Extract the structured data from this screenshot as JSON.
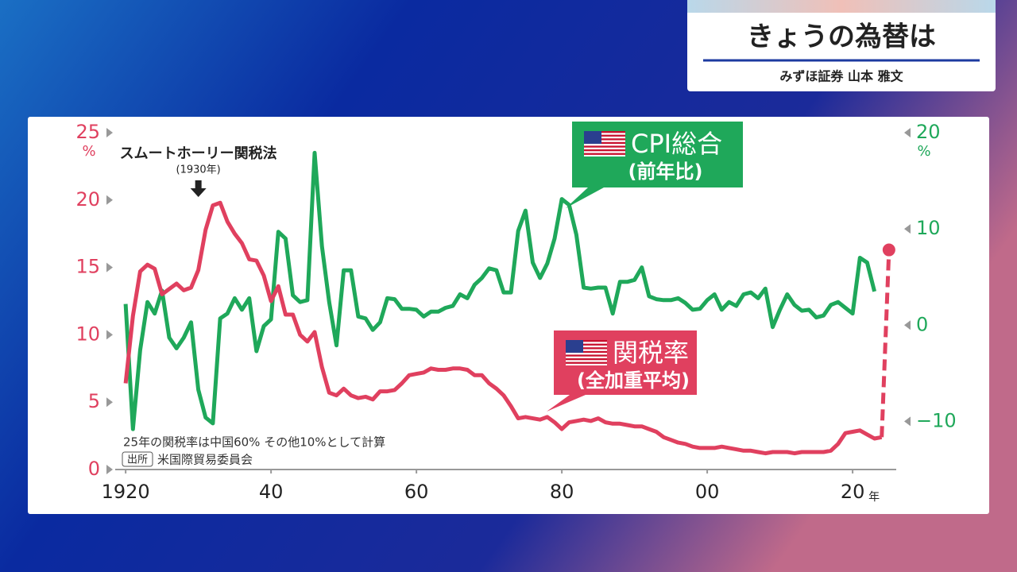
{
  "header": {
    "program": "きょうの為替は",
    "presenter": "みずほ証券 山本 雅文"
  },
  "chart_data": {
    "type": "line",
    "x": [
      1920,
      1921,
      1922,
      1923,
      1924,
      1925,
      1926,
      1927,
      1928,
      1929,
      1930,
      1931,
      1932,
      1933,
      1934,
      1935,
      1936,
      1937,
      1938,
      1939,
      1940,
      1941,
      1942,
      1943,
      1944,
      1945,
      1946,
      1947,
      1948,
      1949,
      1950,
      1951,
      1952,
      1953,
      1954,
      1955,
      1956,
      1957,
      1958,
      1959,
      1960,
      1961,
      1962,
      1963,
      1964,
      1965,
      1966,
      1967,
      1968,
      1969,
      1970,
      1971,
      1972,
      1973,
      1974,
      1975,
      1976,
      1977,
      1978,
      1979,
      1980,
      1981,
      1982,
      1983,
      1984,
      1985,
      1986,
      1987,
      1988,
      1989,
      1990,
      1991,
      1992,
      1993,
      1994,
      1995,
      1996,
      1997,
      1998,
      1999,
      2000,
      2001,
      2002,
      2003,
      2004,
      2005,
      2006,
      2007,
      2008,
      2009,
      2010,
      2011,
      2012,
      2013,
      2014,
      2015,
      2016,
      2017,
      2018,
      2019,
      2020,
      2021,
      2022,
      2023,
      2024,
      2025
    ],
    "series": [
      {
        "name": "関税率",
        "sublabel": "(全加重平均)",
        "color": "#e0405f",
        "axis": "y",
        "dash_last_segment": true,
        "end_marker": true,
        "values": [
          6.4,
          11.4,
          14.7,
          15.2,
          14.9,
          13.0,
          13.4,
          13.8,
          13.3,
          13.5,
          14.8,
          17.8,
          19.6,
          19.8,
          18.4,
          17.5,
          16.8,
          15.6,
          15.5,
          14.4,
          12.5,
          13.6,
          11.5,
          11.5,
          10.0,
          9.5,
          10.2,
          7.6,
          5.7,
          5.5,
          6.0,
          5.5,
          5.3,
          5.4,
          5.2,
          5.8,
          5.8,
          5.9,
          6.4,
          7.0,
          7.1,
          7.2,
          7.5,
          7.4,
          7.4,
          7.5,
          7.5,
          7.4,
          7.0,
          7.0,
          6.4,
          6.0,
          5.5,
          4.7,
          3.8,
          3.9,
          3.8,
          3.7,
          3.9,
          3.5,
          3.0,
          3.5,
          3.6,
          3.7,
          3.6,
          3.8,
          3.5,
          3.4,
          3.4,
          3.3,
          3.2,
          3.2,
          3.0,
          2.8,
          2.4,
          2.2,
          2.0,
          1.9,
          1.7,
          1.6,
          1.6,
          1.6,
          1.7,
          1.6,
          1.5,
          1.4,
          1.4,
          1.3,
          1.2,
          1.3,
          1.3,
          1.3,
          1.2,
          1.3,
          1.3,
          1.3,
          1.3,
          1.4,
          1.9,
          2.7,
          2.8,
          2.9,
          2.6,
          2.3,
          2.4,
          16.3
        ]
      },
      {
        "name": "CPI総合",
        "sublabel": "(前年比)",
        "color": "#1fa85a",
        "axis": "y2",
        "values": [
          2.2,
          -10.8,
          -2.6,
          2.4,
          1.2,
          3.6,
          -1.3,
          -2.4,
          -1.3,
          0.3,
          -6.7,
          -9.6,
          -10.2,
          0.7,
          1.2,
          2.8,
          1.6,
          2.8,
          -2.7,
          -0.1,
          0.6,
          9.7,
          9.0,
          3.1,
          2.4,
          2.6,
          17.9,
          8.2,
          2.4,
          -2.1,
          5.7,
          5.7,
          0.9,
          0.7,
          -0.5,
          0.3,
          2.8,
          2.7,
          1.7,
          1.7,
          1.6,
          0.9,
          1.4,
          1.4,
          1.8,
          2.0,
          3.2,
          2.8,
          4.2,
          4.9,
          5.9,
          5.7,
          3.4,
          3.4,
          9.8,
          11.9,
          6.5,
          4.9,
          6.4,
          9.0,
          13.1,
          12.5,
          9.4,
          3.9,
          3.8,
          3.9,
          3.9,
          1.2,
          4.5,
          4.5,
          4.7,
          6.0,
          3.0,
          2.7,
          2.6,
          2.6,
          2.8,
          2.3,
          1.6,
          1.7,
          2.6,
          3.2,
          1.6,
          2.4,
          2.0,
          3.2,
          3.4,
          2.8,
          3.8,
          -0.2,
          1.6,
          3.2,
          2.1,
          1.5,
          1.6,
          0.8,
          1.0,
          2.1,
          2.4,
          1.8,
          1.2,
          7.0,
          6.5,
          3.5,
          null,
          null
        ]
      }
    ],
    "xlim": [
      1919,
      2026
    ],
    "xticks": [
      {
        "value": 1920,
        "label": "1920"
      },
      {
        "value": 1940,
        "label": "40"
      },
      {
        "value": 1960,
        "label": "60"
      },
      {
        "value": 1980,
        "label": "80"
      },
      {
        "value": 2000,
        "label": "00"
      },
      {
        "value": 2020,
        "label": "20"
      }
    ],
    "x_unit": "年",
    "ylim": [
      0,
      25
    ],
    "yticks": [
      0,
      5,
      10,
      15,
      20,
      25
    ],
    "y_unit": "%",
    "y2lim": [
      -15,
      20
    ],
    "y2ticks": [
      {
        "value": -10,
        "label": "−10"
      },
      0,
      10,
      20
    ],
    "y2_unit": "%",
    "annotation": {
      "text": "スムートホーリー関税法",
      "sub": "(1930年)",
      "x": 1930
    },
    "note": "25年の関税率は中国60% その他10%として計算",
    "source_label": "出所",
    "source": "米国際貿易委員会"
  }
}
